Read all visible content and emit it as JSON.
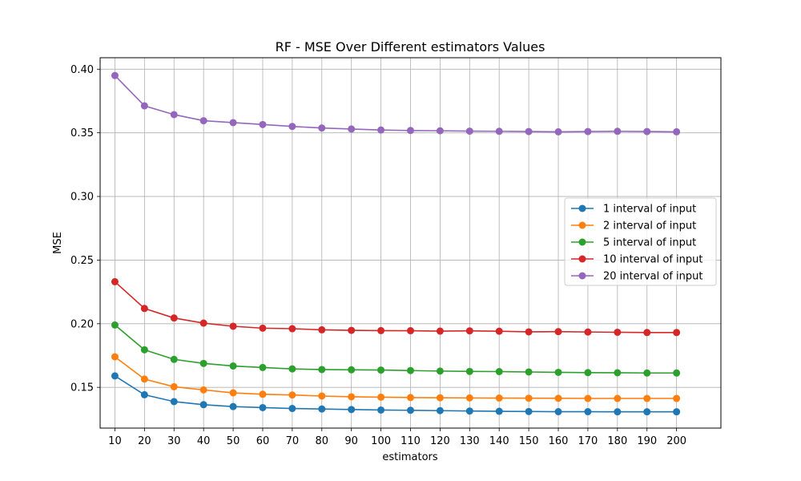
{
  "chart_data": {
    "type": "line",
    "title": "RF - MSE Over Different estimators Values",
    "xlabel": "estimators",
    "ylabel": "MSE",
    "x": [
      10,
      20,
      30,
      40,
      50,
      60,
      70,
      80,
      90,
      100,
      110,
      120,
      130,
      140,
      150,
      160,
      170,
      180,
      190,
      200
    ],
    "xlim": [
      5,
      215
    ],
    "ylim": [
      0.118,
      0.409
    ],
    "yticks": [
      "0.15",
      "0.20",
      "0.25",
      "0.30",
      "0.35",
      "0.40"
    ],
    "ytick_values": [
      0.15,
      0.2,
      0.25,
      0.3,
      0.35,
      0.4
    ],
    "grid": true,
    "legend_position": "center-right",
    "series": [
      {
        "name": "1 interval of input",
        "color": "#1f77b4",
        "values": [
          0.159,
          0.1442,
          0.1388,
          0.1364,
          0.1349,
          0.1341,
          0.1334,
          0.133,
          0.1326,
          0.1322,
          0.132,
          0.1317,
          0.1314,
          0.1312,
          0.131,
          0.1309,
          0.1309,
          0.1308,
          0.1308,
          0.1308
        ]
      },
      {
        "name": "2 interval of input",
        "color": "#ff7f0e",
        "values": [
          0.174,
          0.1565,
          0.1505,
          0.148,
          0.1457,
          0.1446,
          0.144,
          0.1432,
          0.1426,
          0.1423,
          0.142,
          0.1418,
          0.1417,
          0.1416,
          0.1415,
          0.1414,
          0.1413,
          0.1413,
          0.1413,
          0.1413
        ]
      },
      {
        "name": "5 interval of input",
        "color": "#2ca02c",
        "values": [
          0.199,
          0.1795,
          0.172,
          0.1688,
          0.1668,
          0.1656,
          0.1645,
          0.164,
          0.1638,
          0.1636,
          0.1632,
          0.1628,
          0.1625,
          0.1624,
          0.1621,
          0.1618,
          0.1616,
          0.1615,
          0.1613,
          0.1613
        ]
      },
      {
        "name": "10 interval of input",
        "color": "#d62728",
        "values": [
          0.233,
          0.212,
          0.2045,
          0.2005,
          0.198,
          0.1965,
          0.1961,
          0.1952,
          0.1948,
          0.1946,
          0.1945,
          0.1942,
          0.1944,
          0.1941,
          0.1936,
          0.1938,
          0.1935,
          0.1933,
          0.1931,
          0.1931
        ]
      },
      {
        "name": "20 interval of input",
        "color": "#9467bd",
        "values": [
          0.395,
          0.3712,
          0.3643,
          0.3595,
          0.358,
          0.3565,
          0.355,
          0.3538,
          0.353,
          0.3522,
          0.3518,
          0.3516,
          0.3513,
          0.3512,
          0.351,
          0.3508,
          0.351,
          0.3512,
          0.351,
          0.3508
        ]
      }
    ]
  }
}
